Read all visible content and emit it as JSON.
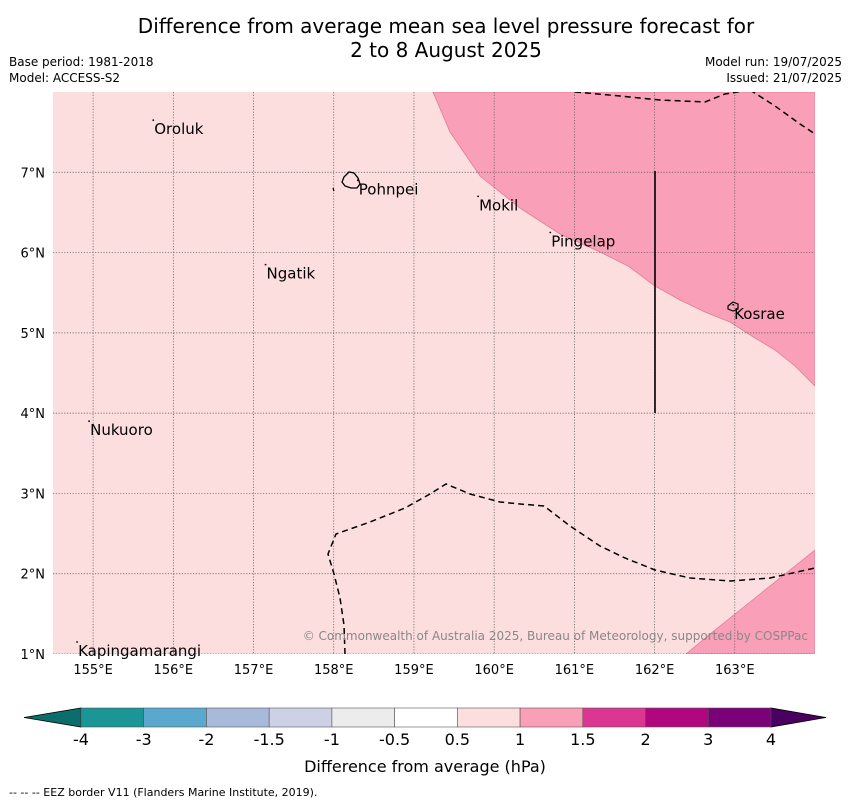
{
  "title": {
    "line1": "Difference from average mean sea level pressure forecast for",
    "line2": "2 to 8 August 2025"
  },
  "meta": {
    "base_period": "Base period: 1981-2018",
    "model": "Model: ACCESS-S2",
    "model_run": "Model run: 19/07/2025",
    "issued": "Issued: 21/07/2025"
  },
  "map": {
    "lon_ticks": [
      "155°E",
      "156°E",
      "157°E",
      "158°E",
      "159°E",
      "160°E",
      "161°E",
      "162°E",
      "163°E"
    ],
    "lat_ticks": [
      "1°N",
      "2°N",
      "3°N",
      "4°N",
      "5°N",
      "6°N",
      "7°N"
    ],
    "places": [
      {
        "name": "Oroluk",
        "lon": 155.75,
        "lat": 7.6
      },
      {
        "name": "Pohnpei",
        "lon": 158.3,
        "lat": 6.85
      },
      {
        "name": "Mokil",
        "lon": 159.8,
        "lat": 6.65
      },
      {
        "name": "Pingelap",
        "lon": 160.7,
        "lat": 6.2
      },
      {
        "name": "Ngatik",
        "lon": 157.15,
        "lat": 5.8
      },
      {
        "name": "Kosrae",
        "lon": 162.98,
        "lat": 5.3
      },
      {
        "name": "Nukuoro",
        "lon": 154.95,
        "lat": 3.85
      },
      {
        "name": "Kapingamarangi",
        "lon": 154.8,
        "lat": 1.1
      }
    ],
    "copyright": "© Commonwealth of Australia 2025, Bureau of Meteorology, supported by COSPPac",
    "fill_colors": {
      "base": "#fddede",
      "high": "#f9a0b8",
      "outline": "#e07b99"
    }
  },
  "colorbar": {
    "label": "Difference from average (hPa)",
    "ticks": [
      "-4",
      "-3",
      "-2",
      "-1.5",
      "-1",
      "-0.5",
      "0.5",
      "1",
      "1.5",
      "2",
      "3",
      "4"
    ],
    "colors": [
      "#1a9696",
      "#5aa8cf",
      "#a8b9da",
      "#ced0e6",
      "#ececec",
      "#ffffff",
      "#fddede",
      "#f9a0b8",
      "#db3691",
      "#b0077f",
      "#7a0177"
    ],
    "under_color": "#0c6e6a",
    "over_color": "#4a0060"
  },
  "footer": {
    "eez_note": "--  --  -- EEZ border V11 (Flanders Marine Institute, 2019)."
  }
}
